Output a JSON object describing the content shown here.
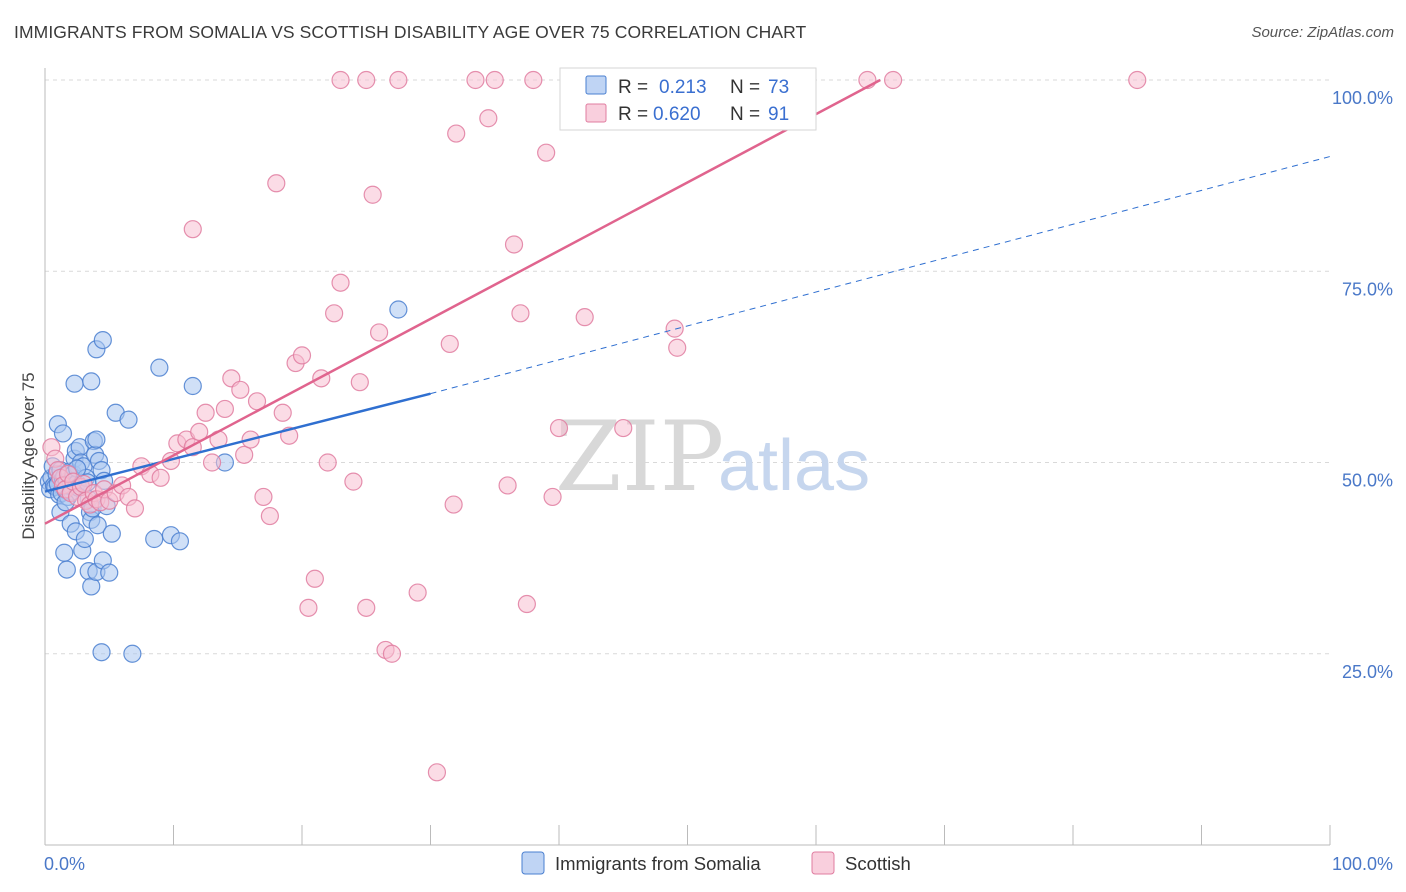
{
  "title": "IMMIGRANTS FROM SOMALIA VS SCOTTISH DISABILITY AGE OVER 75 CORRELATION CHART",
  "source": "Source: ZipAtlas.com",
  "watermark": {
    "zip": "ZIP",
    "atlas": "atlas"
  },
  "colors": {
    "somalia_fill": "#a9c6f0",
    "somalia_stroke": "#4a7fd0",
    "somalia_line": "#2f6fd0",
    "scottish_fill": "#f7bfd1",
    "scottish_stroke": "#e07ca0",
    "scottish_line": "#e0648e",
    "grid": "#d9d9d9",
    "tick_label": "#4a78c8"
  },
  "legend": {
    "r_label": "R =",
    "n_label": "N =",
    "somalia": {
      "r": "0.213",
      "n": "73"
    },
    "scottish": {
      "r": "0.620",
      "n": "91"
    }
  },
  "chart_data": {
    "type": "scatter",
    "title": "IMMIGRANTS FROM SOMALIA VS SCOTTISH DISABILITY AGE OVER 75 CORRELATION CHART",
    "xlabel": "",
    "ylabel": "Disability Age Over 75",
    "xlim": [
      0,
      100
    ],
    "ylim": [
      0,
      100
    ],
    "x_tick_labels": [
      "0.0%",
      "100.0%"
    ],
    "y_tick_labels": [
      "25.0%",
      "50.0%",
      "75.0%",
      "100.0%"
    ],
    "y_ticks": [
      25,
      50,
      75,
      100
    ],
    "grid": true,
    "legend_position": "top-center",
    "series": [
      {
        "name": "Immigrants from Somalia",
        "r": 0.213,
        "n": 73,
        "trend": {
          "x0": 0,
          "y0": 46.2,
          "x1": 30,
          "y1": 59.0,
          "dash_to_x": 100,
          "dash_to_y": 90.0
        },
        "points": [
          [
            0.3,
            47.5
          ],
          [
            0.4,
            46.5
          ],
          [
            0.5,
            48.0
          ],
          [
            0.6,
            49.5
          ],
          [
            0.7,
            47.0
          ],
          [
            0.8,
            46.8
          ],
          [
            0.9,
            48.5
          ],
          [
            1.0,
            47.2
          ],
          [
            1.1,
            45.8
          ],
          [
            1.2,
            49.0
          ],
          [
            1.3,
            46.0
          ],
          [
            1.4,
            47.8
          ],
          [
            1.5,
            48.2
          ],
          [
            1.6,
            46.4
          ],
          [
            1.7,
            47.5
          ],
          [
            1.8,
            45.5
          ],
          [
            1.9,
            48.8
          ],
          [
            2.0,
            47.0
          ],
          [
            2.1,
            46.2
          ],
          [
            2.2,
            48.5
          ],
          [
            2.3,
            50.5
          ],
          [
            2.4,
            51.5
          ],
          [
            2.5,
            47.3
          ],
          [
            2.6,
            46.7
          ],
          [
            2.7,
            52.0
          ],
          [
            2.8,
            50.0
          ],
          [
            3.0,
            49.5
          ],
          [
            3.2,
            48.0
          ],
          [
            3.3,
            47.4
          ],
          [
            3.4,
            45.2
          ],
          [
            3.5,
            43.5
          ],
          [
            3.6,
            42.5
          ],
          [
            3.7,
            44.0
          ],
          [
            3.8,
            52.8
          ],
          [
            3.9,
            51.0
          ],
          [
            4.0,
            53.0
          ],
          [
            4.2,
            50.2
          ],
          [
            4.4,
            49.0
          ],
          [
            4.6,
            47.6
          ],
          [
            4.8,
            44.3
          ],
          [
            1.2,
            43.5
          ],
          [
            1.6,
            44.8
          ],
          [
            2.0,
            42.0
          ],
          [
            2.4,
            41.0
          ],
          [
            2.9,
            38.5
          ],
          [
            3.1,
            40.0
          ],
          [
            3.4,
            35.8
          ],
          [
            3.6,
            33.8
          ],
          [
            4.0,
            35.7
          ],
          [
            1.5,
            38.2
          ],
          [
            1.7,
            36.0
          ],
          [
            4.5,
            37.2
          ],
          [
            5.0,
            35.6
          ],
          [
            2.3,
            60.3
          ],
          [
            3.6,
            60.6
          ],
          [
            4.0,
            64.8
          ],
          [
            4.5,
            66.0
          ],
          [
            5.5,
            56.5
          ],
          [
            6.5,
            55.6
          ],
          [
            1.0,
            55.0
          ],
          [
            1.4,
            53.8
          ],
          [
            2.5,
            49.2
          ],
          [
            4.1,
            41.8
          ],
          [
            5.2,
            40.7
          ],
          [
            8.5,
            40.0
          ],
          [
            9.8,
            40.5
          ],
          [
            10.5,
            39.7
          ],
          [
            8.9,
            62.4
          ],
          [
            11.5,
            60.0
          ],
          [
            14.0,
            50.0
          ],
          [
            27.5,
            70.0
          ],
          [
            4.4,
            25.2
          ],
          [
            6.8,
            25.0
          ]
        ]
      },
      {
        "name": "Scottish",
        "r": 0.62,
        "n": 91,
        "trend": {
          "x0": 0,
          "y0": 42.0,
          "x1": 65,
          "y1": 100.0
        },
        "points": [
          [
            0.5,
            52.0
          ],
          [
            0.8,
            50.5
          ],
          [
            1.0,
            49.0
          ],
          [
            1.2,
            48.0
          ],
          [
            1.4,
            47.0
          ],
          [
            1.6,
            46.5
          ],
          [
            1.8,
            48.5
          ],
          [
            2.0,
            46.0
          ],
          [
            2.2,
            47.5
          ],
          [
            2.5,
            45.5
          ],
          [
            2.8,
            46.8
          ],
          [
            3.0,
            47.2
          ],
          [
            3.2,
            45.0
          ],
          [
            3.5,
            44.5
          ],
          [
            3.8,
            46.0
          ],
          [
            4.0,
            45.2
          ],
          [
            4.3,
            44.8
          ],
          [
            4.6,
            46.5
          ],
          [
            5.0,
            45.0
          ],
          [
            5.5,
            46.0
          ],
          [
            6.0,
            47.0
          ],
          [
            6.5,
            45.5
          ],
          [
            7.0,
            44.0
          ],
          [
            7.5,
            49.5
          ],
          [
            8.2,
            48.5
          ],
          [
            9.0,
            48.0
          ],
          [
            9.8,
            50.2
          ],
          [
            10.3,
            52.5
          ],
          [
            11.0,
            53.0
          ],
          [
            11.5,
            52.0
          ],
          [
            12.0,
            54.0
          ],
          [
            12.5,
            56.5
          ],
          [
            13.0,
            50.0
          ],
          [
            13.5,
            53.0
          ],
          [
            14.0,
            57.0
          ],
          [
            14.5,
            61.0
          ],
          [
            15.2,
            59.5
          ],
          [
            15.5,
            51.0
          ],
          [
            16.0,
            53.0
          ],
          [
            16.5,
            58.0
          ],
          [
            17.0,
            45.5
          ],
          [
            17.5,
            43.0
          ],
          [
            18.5,
            56.5
          ],
          [
            19.0,
            53.5
          ],
          [
            19.5,
            63.0
          ],
          [
            20.0,
            64.0
          ],
          [
            21.5,
            61.0
          ],
          [
            22.5,
            69.5
          ],
          [
            23.0,
            73.5
          ],
          [
            24.0,
            47.5
          ],
          [
            24.5,
            60.5
          ],
          [
            22.0,
            50.0
          ],
          [
            21.0,
            34.8
          ],
          [
            20.5,
            31.0
          ],
          [
            25.5,
            85.0
          ],
          [
            26.0,
            67.0
          ],
          [
            26.5,
            25.5
          ],
          [
            27.0,
            25.0
          ],
          [
            25.0,
            31.0
          ],
          [
            29.0,
            33.0
          ],
          [
            30.5,
            9.5
          ],
          [
            31.5,
            65.5
          ],
          [
            31.8,
            44.5
          ],
          [
            32.0,
            93.0
          ],
          [
            33.5,
            100.0
          ],
          [
            34.5,
            95.0
          ],
          [
            35.0,
            100.0
          ],
          [
            36.0,
            47.0
          ],
          [
            36.5,
            78.5
          ],
          [
            37.0,
            69.5
          ],
          [
            37.5,
            31.5
          ],
          [
            38.0,
            100.0
          ],
          [
            39.0,
            90.5
          ],
          [
            39.5,
            45.5
          ],
          [
            40.0,
            54.5
          ],
          [
            41.0,
            100.0
          ],
          [
            42.0,
            69.0
          ],
          [
            43.0,
            100.0
          ],
          [
            45.0,
            54.5
          ],
          [
            47.0,
            100.0
          ],
          [
            49.0,
            67.5
          ],
          [
            49.2,
            65.0
          ],
          [
            58.0,
            100.0
          ],
          [
            64.0,
            100.0
          ],
          [
            66.0,
            100.0
          ],
          [
            85.0,
            100.0
          ],
          [
            23.0,
            100.0
          ],
          [
            25.0,
            100.0
          ],
          [
            27.5,
            100.0
          ],
          [
            18.0,
            86.5
          ],
          [
            11.5,
            80.5
          ]
        ]
      }
    ]
  }
}
